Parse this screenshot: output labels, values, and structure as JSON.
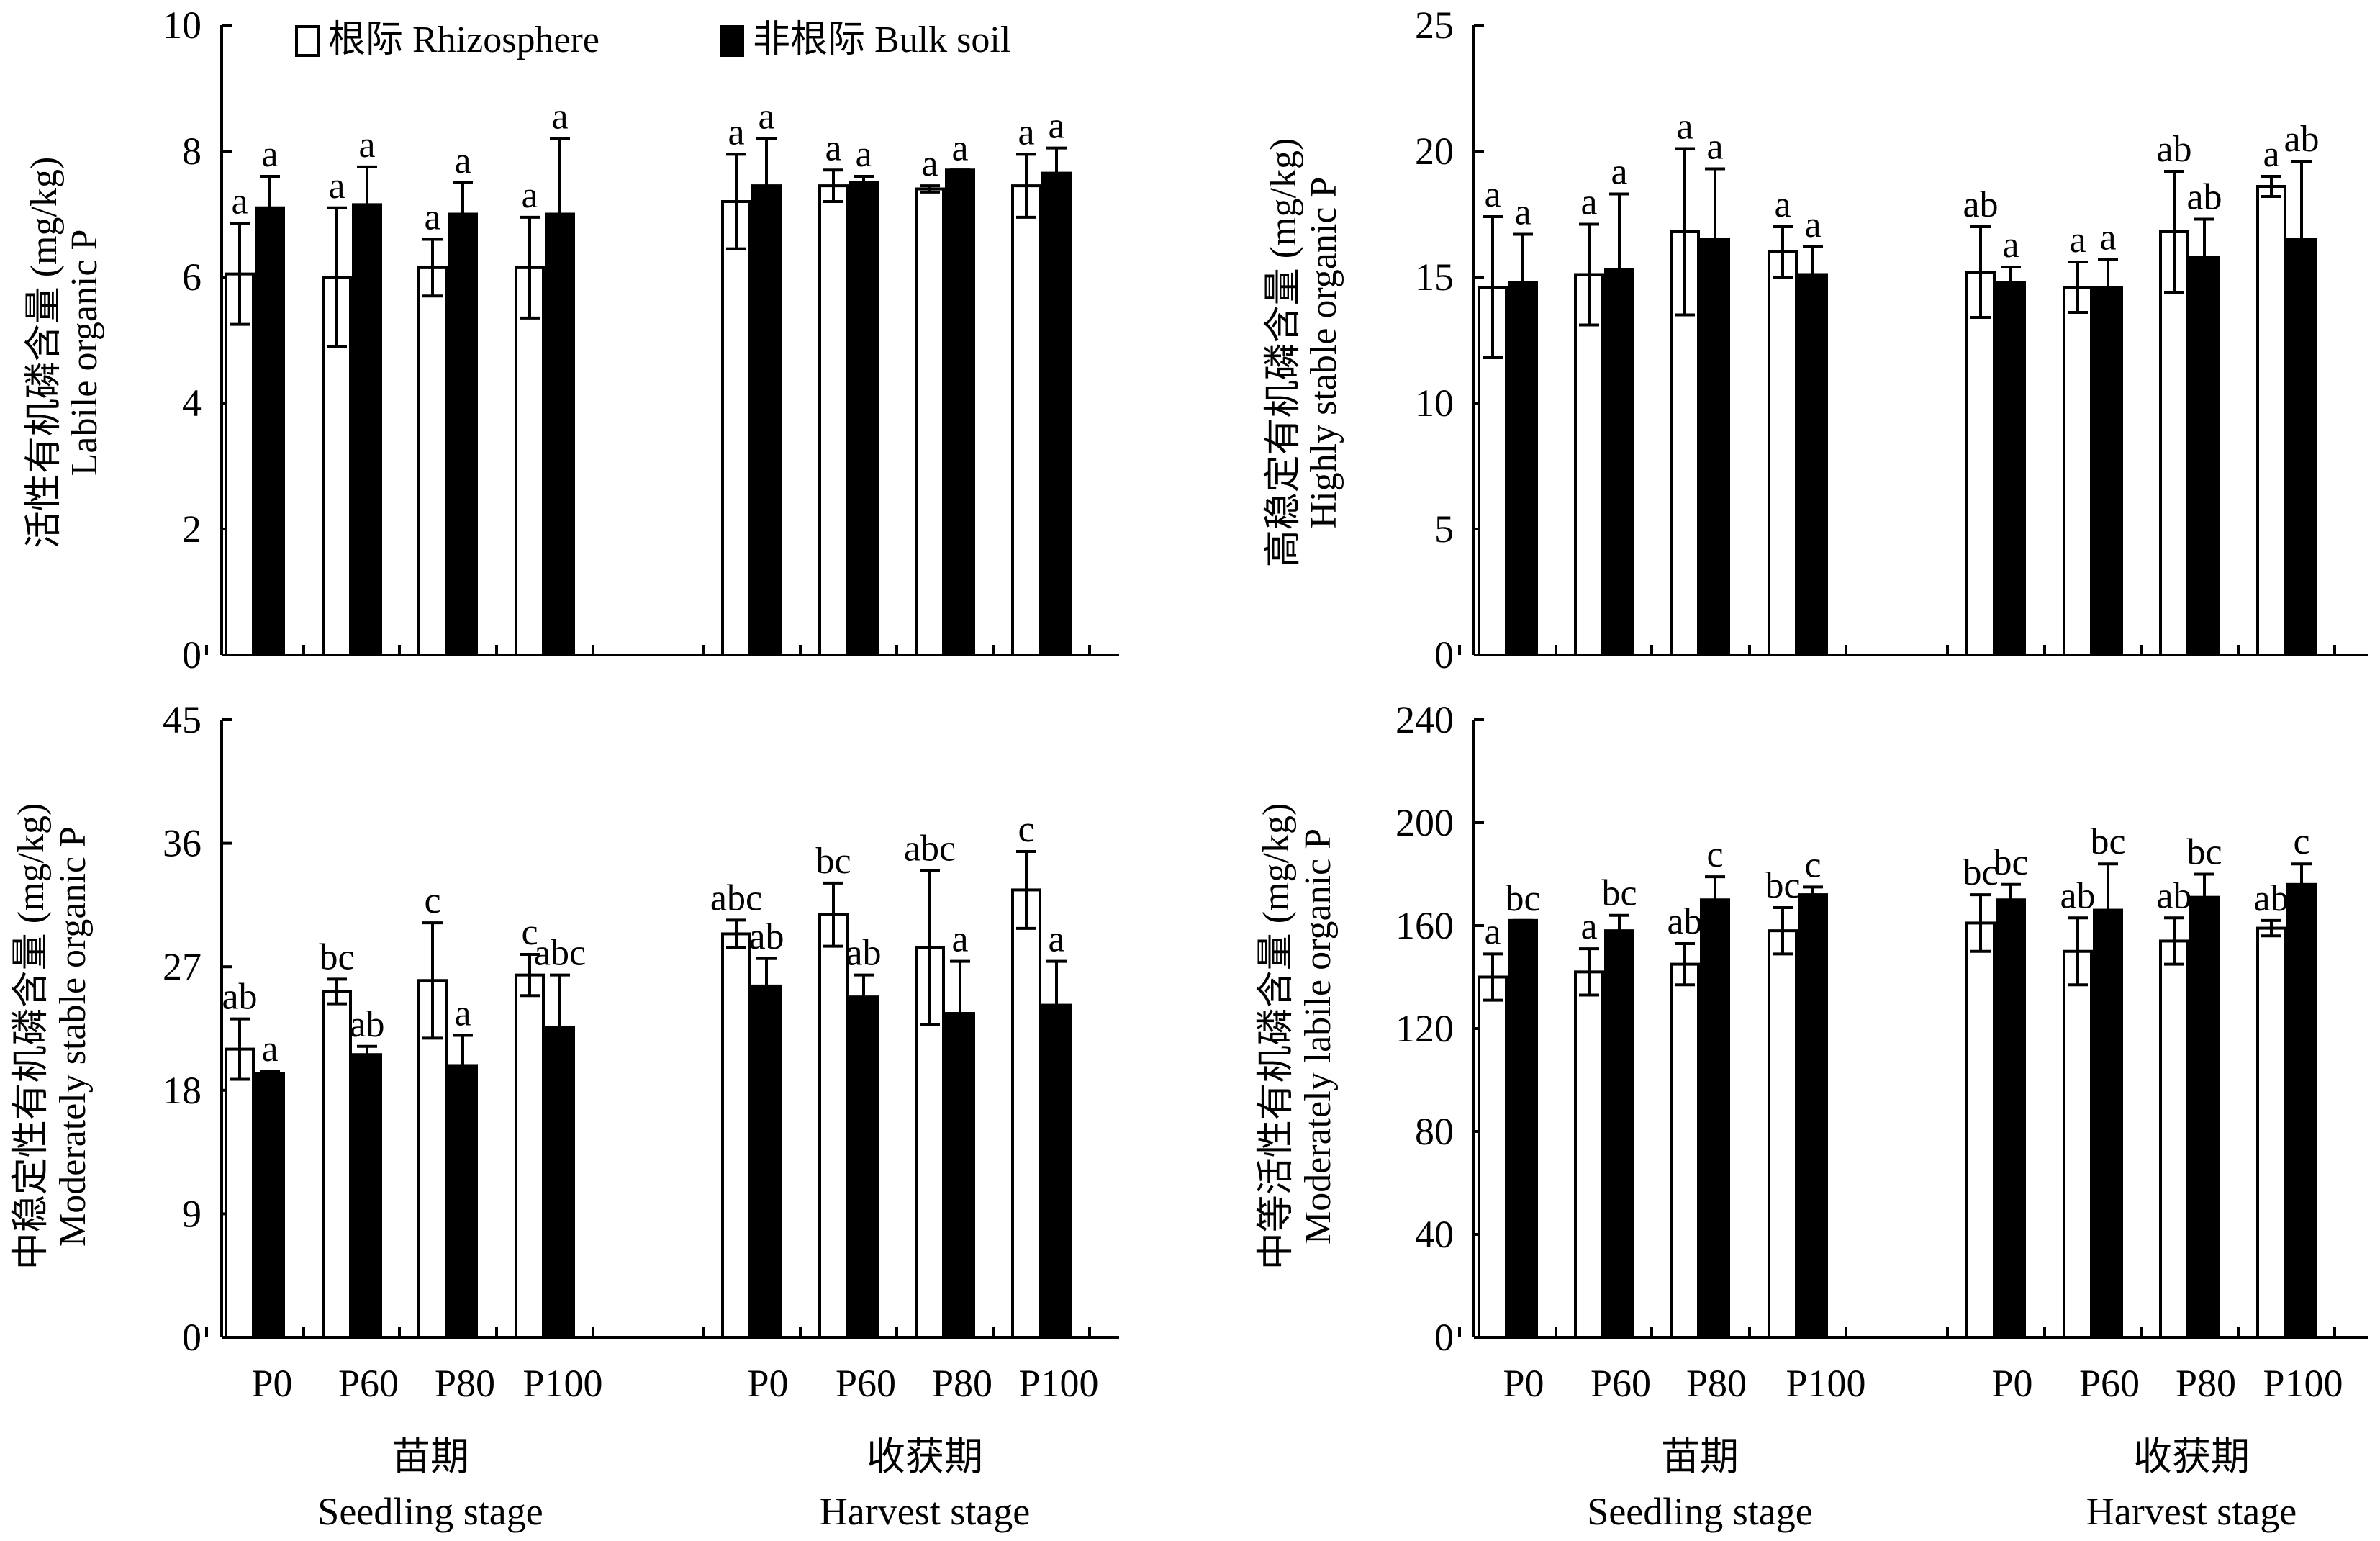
{
  "legend": {
    "rhizosphere_label": "根际 Rhizosphere",
    "bulk_label": "非根际 Bulk soil"
  },
  "x_axis": {
    "treatments": [
      "P0",
      "P60",
      "P80",
      "P100"
    ],
    "stages": [
      {
        "zh": "苗期",
        "en": "Seedling stage"
      },
      {
        "zh": "收获期",
        "en": "Harvest stage"
      }
    ]
  },
  "colors": {
    "rhizosphere_fill": "#ffffff",
    "bulk_fill": "#000000",
    "stroke": "#000000"
  },
  "chart_data": [
    {
      "id": "labile",
      "type": "bar",
      "ylabel_zh": "活性有机磷含量 (mg/kg)",
      "ylabel_en": "Labile organic P",
      "ylim": [
        0,
        10
      ],
      "yticks": [
        0,
        2,
        4,
        6,
        8,
        10
      ],
      "categories": [
        "P0",
        "P60",
        "P80",
        "P100",
        "P0",
        "P60",
        "P80",
        "P100"
      ],
      "series": [
        {
          "name": "根际 Rhizosphere",
          "values": [
            6.05,
            6.0,
            6.15,
            6.15,
            7.2,
            7.45,
            7.4,
            7.45
          ],
          "errors": [
            0.8,
            1.1,
            0.45,
            0.8,
            0.75,
            0.25,
            0.05,
            0.5
          ],
          "letters": [
            "a",
            "a",
            "a",
            "a",
            "a",
            "a",
            "a",
            "a"
          ]
        },
        {
          "name": "非根际 Bulk soil",
          "values": [
            7.1,
            7.15,
            7.0,
            7.0,
            7.45,
            7.5,
            7.7,
            7.65
          ],
          "errors": [
            0.5,
            0.6,
            0.5,
            1.2,
            0.75,
            0.1,
            0.0,
            0.4
          ],
          "letters": [
            "a",
            "a",
            "a",
            "a",
            "a",
            "a",
            "a",
            "a"
          ]
        }
      ]
    },
    {
      "id": "highly-stable",
      "type": "bar",
      "ylabel_zh": "高稳定有机磷含量 (mg/kg)",
      "ylabel_en": "Highly stable organic P",
      "ylim": [
        0,
        25
      ],
      "yticks": [
        0,
        5,
        10,
        15,
        20,
        25
      ],
      "categories": [
        "P0",
        "P60",
        "P80",
        "P100",
        "P0",
        "P60",
        "P80",
        "P100"
      ],
      "series": [
        {
          "name": "根际 Rhizosphere",
          "values": [
            14.6,
            15.1,
            16.8,
            16.0,
            15.2,
            14.6,
            16.8,
            18.6
          ],
          "errors": [
            2.8,
            2.0,
            3.3,
            1.0,
            1.8,
            1.0,
            2.4,
            0.4
          ],
          "letters": [
            "a",
            "a",
            "a",
            "a",
            "ab",
            "a",
            "ab",
            "a"
          ]
        },
        {
          "name": "非根际 Bulk soil",
          "values": [
            14.8,
            15.3,
            16.5,
            15.1,
            14.8,
            14.6,
            15.8,
            16.5
          ],
          "errors": [
            1.9,
            3.0,
            2.8,
            1.1,
            0.6,
            1.1,
            1.5,
            3.1
          ],
          "letters": [
            "a",
            "a",
            "a",
            "a",
            "a",
            "a",
            "ab",
            "ab"
          ]
        }
      ]
    },
    {
      "id": "moderately-stable",
      "type": "bar",
      "ylabel_zh": "中稳定性有机磷含量 (mg/kg)",
      "ylabel_en": "Moderately stable organic P",
      "ylim": [
        0,
        45
      ],
      "yticks": [
        0,
        9,
        18,
        27,
        36,
        45
      ],
      "categories": [
        "P0",
        "P60",
        "P80",
        "P100",
        "P0",
        "P60",
        "P80",
        "P100"
      ],
      "series": [
        {
          "name": "根际 Rhizosphere",
          "values": [
            21.0,
            25.2,
            26.0,
            26.4,
            29.4,
            30.8,
            28.4,
            32.6
          ],
          "errors": [
            2.2,
            0.9,
            4.2,
            1.5,
            1.0,
            2.3,
            5.6,
            2.8
          ],
          "letters": [
            "ab",
            "bc",
            "c",
            "c",
            "abc",
            "bc",
            "abc",
            "c"
          ]
        },
        {
          "name": "非根际 Bulk soil",
          "values": [
            19.2,
            20.6,
            19.8,
            22.6,
            25.6,
            24.8,
            23.6,
            24.2
          ],
          "errors": [
            0.2,
            0.6,
            2.2,
            3.8,
            2.0,
            1.6,
            3.8,
            3.2
          ],
          "letters": [
            "a",
            "ab",
            "a",
            "abc",
            "ab",
            "ab",
            "a",
            "a"
          ]
        }
      ]
    },
    {
      "id": "moderately-labile",
      "type": "bar",
      "ylabel_zh": "中等活性有机磷含量 (mg/kg)",
      "ylabel_en": "Moderately labile organic P",
      "ylim": [
        0,
        240
      ],
      "yticks": [
        0,
        40,
        80,
        120,
        160,
        200,
        240
      ],
      "categories": [
        "P0",
        "P60",
        "P80",
        "P100",
        "P0",
        "P60",
        "P80",
        "P100"
      ],
      "series": [
        {
          "name": "根际 Rhizosphere",
          "values": [
            140,
            142,
            145,
            158,
            161,
            150,
            154,
            159
          ],
          "errors": [
            9,
            9,
            8,
            9,
            11,
            13,
            9,
            3
          ],
          "letters": [
            "a",
            "a",
            "ab",
            "bc",
            "bc",
            "ab",
            "ab",
            "ab"
          ]
        },
        {
          "name": "非根际 Bulk soil",
          "values": [
            162,
            158,
            170,
            172,
            170,
            166,
            171,
            176
          ],
          "errors": [
            0,
            6,
            9,
            3,
            6,
            18,
            9,
            8
          ],
          "letters": [
            "bc",
            "bc",
            "c",
            "c",
            "bc",
            "bc",
            "bc",
            "c"
          ]
        }
      ]
    }
  ]
}
